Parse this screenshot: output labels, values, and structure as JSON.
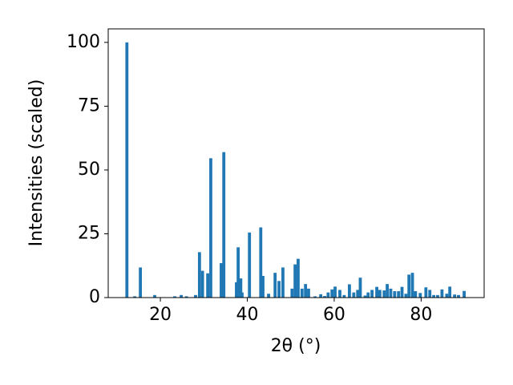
{
  "chart_data": {
    "type": "bar",
    "xlabel": "2θ (°)",
    "ylabel": "Intensities (scaled)",
    "x": [
      12.3,
      14.1,
      15.4,
      18.7,
      23.3,
      24.8,
      26.0,
      28.1,
      29.0,
      29.7,
      30.9,
      31.6,
      34.0,
      34.6,
      37.5,
      37.9,
      38.5,
      38.8,
      40.5,
      43.1,
      43.6,
      44.9,
      46.4,
      47.3,
      48.2,
      50.3,
      51.0,
      51.7,
      52.6,
      53.4,
      54.1,
      55.6,
      56.9,
      57.8,
      58.6,
      59.5,
      60.2,
      61.3,
      62.3,
      63.5,
      64.5,
      65.4,
      66.0,
      67.1,
      67.8,
      68.7,
      69.8,
      70.5,
      71.5,
      72.2,
      73.0,
      73.9,
      74.8,
      75.6,
      76.5,
      77.2,
      78.0,
      78.7,
      79.8,
      81.1,
      82.0,
      82.9,
      83.8,
      84.8,
      85.9,
      86.6,
      87.7,
      88.6,
      89.9
    ],
    "values": [
      100,
      0.5,
      11.8,
      1,
      0.5,
      1,
      0.5,
      1,
      17.8,
      10.5,
      9.5,
      54.6,
      13.5,
      57,
      6,
      19.7,
      7.5,
      2,
      25.5,
      27.5,
      8.5,
      1.5,
      9.7,
      6.5,
      11.8,
      3.5,
      13,
      15.2,
      3.5,
      5.3,
      3.5,
      0.5,
      1.3,
      0.6,
      2,
      3.2,
      4.3,
      3,
      1,
      5.2,
      2,
      3,
      7.8,
      0.8,
      2,
      3,
      4.2,
      3,
      2.8,
      5.3,
      3.5,
      2.5,
      2.5,
      4.2,
      1.5,
      9,
      9.7,
      2.5,
      1.8,
      4,
      3,
      1,
      1,
      3.2,
      1.5,
      4.3,
      1.2,
      1,
      2.6
    ],
    "color": "#1f77b4",
    "xlim": [
      8,
      94.5
    ],
    "ylim": [
      0,
      105.3
    ],
    "xticks": [
      20,
      40,
      60,
      80
    ],
    "yticks": [
      0,
      25,
      50,
      75,
      100
    ],
    "grid": false
  }
}
